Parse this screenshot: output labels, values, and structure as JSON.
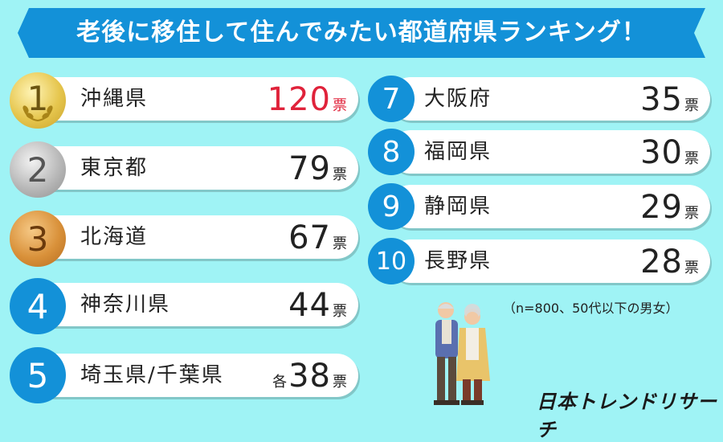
{
  "title": "老後に移住して住んでみたい都道府県ランキング！",
  "unit": "票",
  "note": "（n=800、50代以下の男女）",
  "logo": "日本トレンドリサーチ",
  "colors": {
    "background": "#9ff3f5",
    "accent": "#1391d8",
    "highlight": "#e0223a"
  },
  "rankings": [
    {
      "rank": "1",
      "prefecture": "沖縄県",
      "votes": "120",
      "medal": "gold"
    },
    {
      "rank": "2",
      "prefecture": "東京都",
      "votes": "79",
      "medal": "silver"
    },
    {
      "rank": "3",
      "prefecture": "北海道",
      "votes": "67",
      "medal": "bronze"
    },
    {
      "rank": "4",
      "prefecture": "神奈川県",
      "votes": "44"
    },
    {
      "rank": "5",
      "prefecture": "埼玉県/千葉県",
      "votes": "38",
      "prefix": "各"
    },
    {
      "rank": "7",
      "prefecture": "大阪府",
      "votes": "35"
    },
    {
      "rank": "8",
      "prefecture": "福岡県",
      "votes": "30"
    },
    {
      "rank": "9",
      "prefecture": "静岡県",
      "votes": "29"
    },
    {
      "rank": "10",
      "prefecture": "長野県",
      "votes": "28"
    }
  ]
}
